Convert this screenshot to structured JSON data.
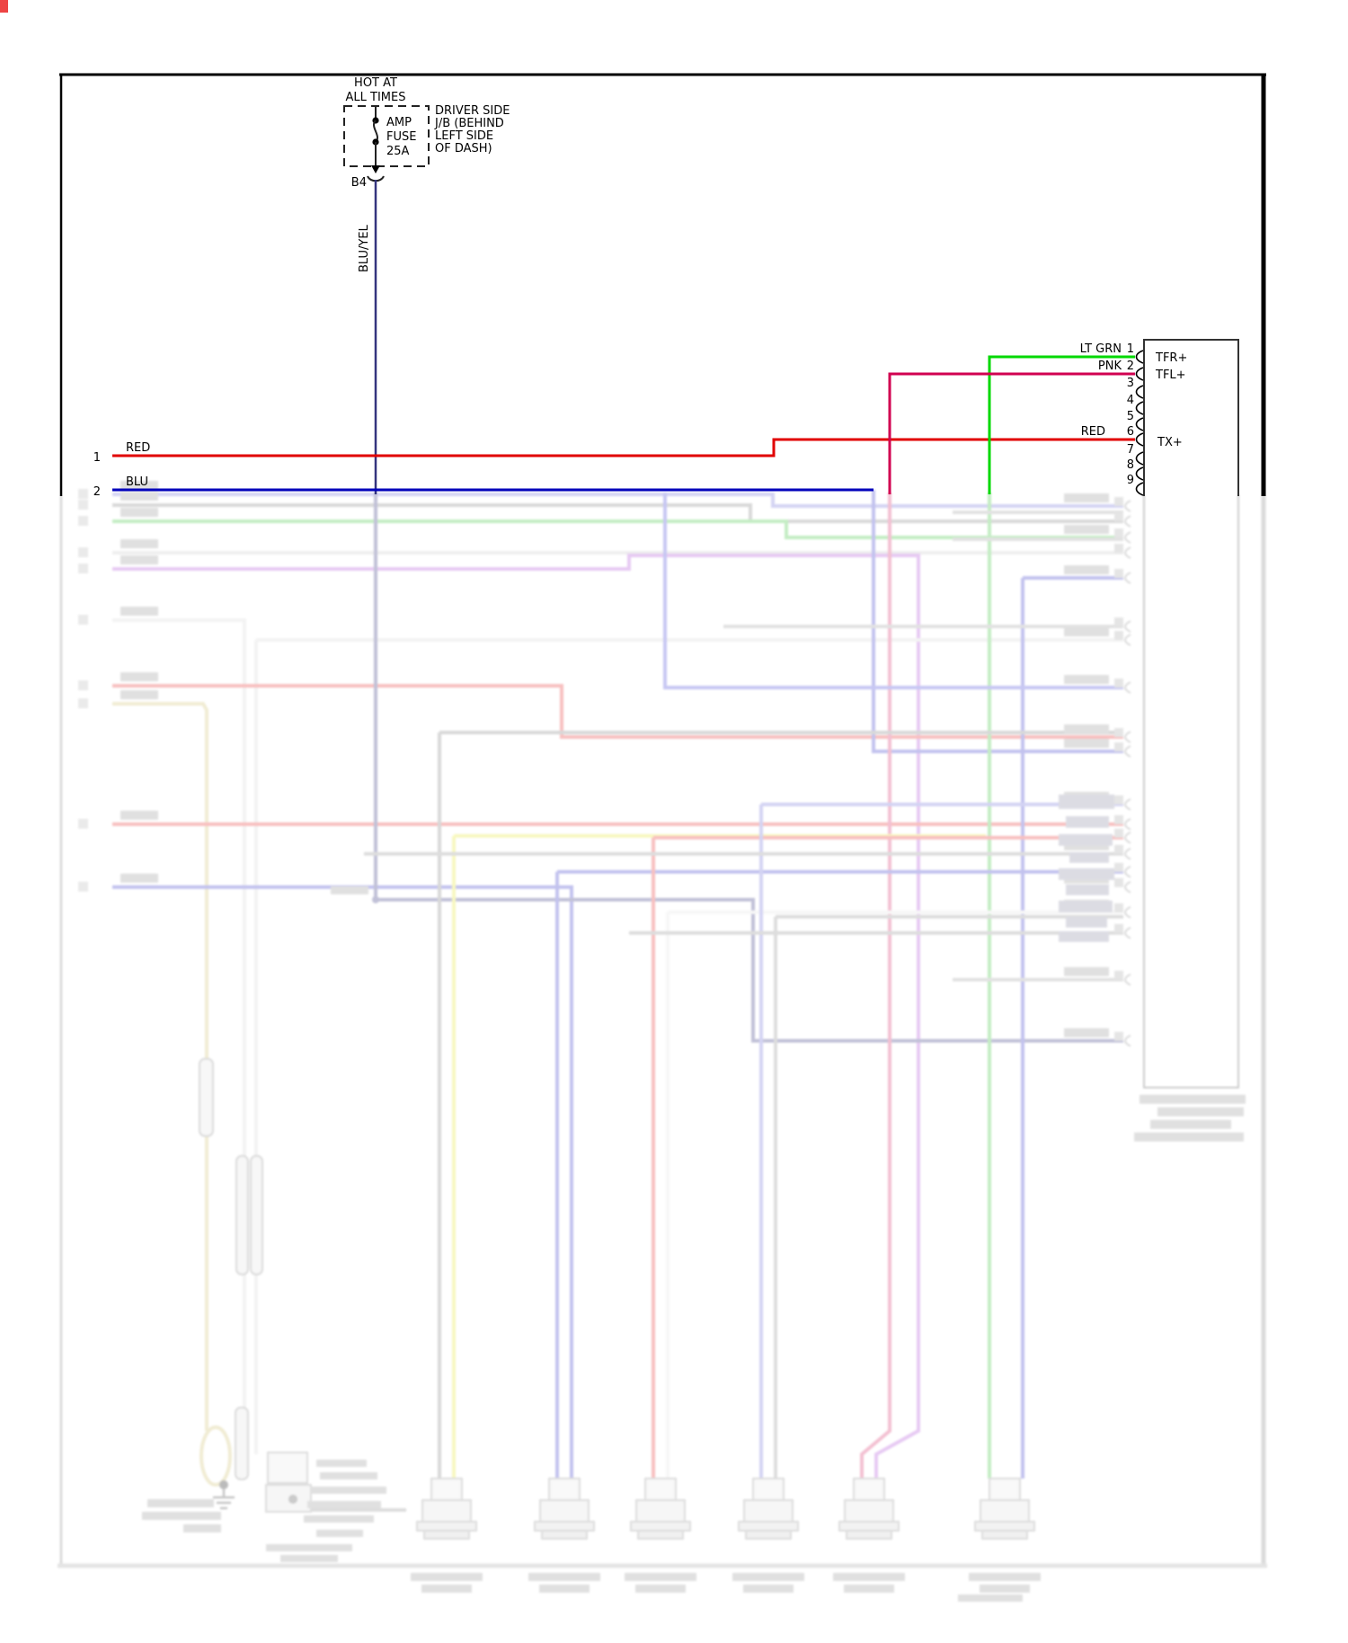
{
  "power": {
    "hot1": "HOT AT",
    "hot2": "ALL TIMES"
  },
  "fuse": {
    "l1": "AMP",
    "l2": "FUSE",
    "l3": "25A"
  },
  "junction_box": {
    "l1": "DRIVER SIDE",
    "l2": "J/B (BEHIND",
    "l3": "LEFT SIDE",
    "l4": "OF DASH)"
  },
  "fuse_pin": "B4",
  "main_wire_label": "BLU/YEL",
  "left_pins": [
    {
      "n": "1",
      "wire": "RED"
    },
    {
      "n": "2",
      "wire": "BLU"
    }
  ],
  "right_connector": {
    "pins": [
      {
        "n": "1",
        "wire": "LT GRN",
        "signal": "TFR+"
      },
      {
        "n": "2",
        "wire": "PNK",
        "signal": "TFL+"
      },
      {
        "n": "3"
      },
      {
        "n": "4"
      },
      {
        "n": "5"
      },
      {
        "n": "6",
        "wire": "RED",
        "signal": "TX+"
      },
      {
        "n": "7"
      },
      {
        "n": "8"
      },
      {
        "n": "9"
      }
    ]
  },
  "colors": {
    "red": "#e10000",
    "blu": "#0000bb",
    "lt_grn": "#00d800",
    "pnk": "#d10050",
    "blu_yel": "#34347e",
    "line": "#000000"
  }
}
